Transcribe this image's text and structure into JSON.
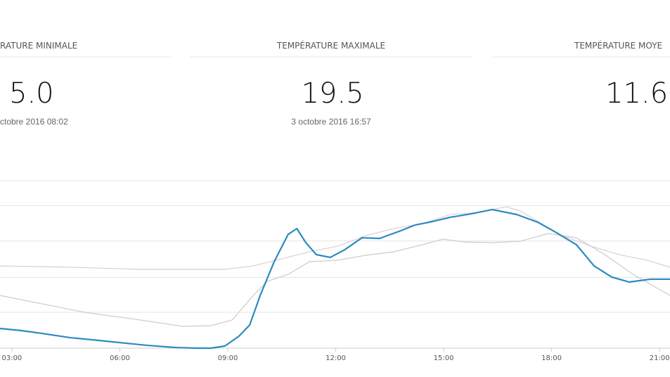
{
  "cards": [
    {
      "header": "RATURE MINIMALE",
      "value": "5.0",
      "date": "ctobre 2016 08:02"
    },
    {
      "header": "TEMPÉRATURE MAXIMALE",
      "value": "19.5",
      "date": "3 octobre 2016 16:57"
    },
    {
      "header": "TEMPÉRATURE MOYE",
      "value": "11.6"
    }
  ],
  "chart_data": {
    "type": "line",
    "xlim": [
      2.67,
      21.29
    ],
    "ylim": [
      5,
      22.5
    ],
    "xticks": [
      {
        "value": 3,
        "label": "03:00"
      },
      {
        "value": 6,
        "label": "06:00"
      },
      {
        "value": 9,
        "label": "09:00"
      },
      {
        "value": 12,
        "label": "12:00"
      },
      {
        "value": 15,
        "label": "15:00"
      },
      {
        "value": 18,
        "label": "18:00"
      },
      {
        "value": 21,
        "label": "21:00"
      }
    ],
    "ygrid": [
      8.75,
      12.4,
      16.2,
      19.9,
      22.5
    ],
    "series": [
      {
        "color": "#e0d2d2",
        "x": [
          2.67,
          4.62,
          6.58,
          8.92,
          9.71,
          10.49,
          11.27,
          12.05,
          12.83,
          13.61,
          14.4,
          15.18,
          15.96,
          16.74,
          17.13,
          17.72,
          18.3,
          19.09,
          19.87,
          20.65,
          21.29
        ],
        "values": [
          13.6,
          13.46,
          13.24,
          13.24,
          13.6,
          14.34,
          15.07,
          15.66,
          16.76,
          17.5,
          18.01,
          18.97,
          19.19,
          19.78,
          19.34,
          18.01,
          16.76,
          15.66,
          14.78,
          14.19,
          13.46
        ]
      },
      {
        "color": "#d4cccc",
        "x": [
          2.67,
          3.84,
          5.02,
          6.58,
          7.75,
          8.53,
          9.12,
          9.71,
          10.1,
          10.68,
          11.27,
          12.05,
          12.83,
          13.61,
          14.4,
          14.98,
          15.57,
          16.35,
          17.13,
          17.91,
          18.69,
          19.48,
          20.26,
          21.29
        ],
        "values": [
          10.51,
          9.63,
          8.75,
          7.94,
          7.28,
          7.35,
          7.94,
          10.51,
          11.99,
          12.72,
          14.04,
          14.19,
          14.71,
          15.07,
          15.81,
          16.4,
          16.1,
          16.03,
          16.18,
          16.99,
          16.54,
          14.78,
          12.72,
          10.51
        ]
      },
      {
        "color": "#2a8bc0",
        "x": [
          2.67,
          3.26,
          3.84,
          4.62,
          5.41,
          6.19,
          6.77,
          7.56,
          8.14,
          8.53,
          8.92,
          9.31,
          9.61,
          9.9,
          10.29,
          10.68,
          10.92,
          11.17,
          11.46,
          11.85,
          12.25,
          12.73,
          13.22,
          13.81,
          14.2,
          14.59,
          15.18,
          15.76,
          16.35,
          17.03,
          17.62,
          18.11,
          18.69,
          19.18,
          19.67,
          20.16,
          20.75,
          21.29
        ],
        "values": [
          7.06,
          6.84,
          6.54,
          6.1,
          5.81,
          5.51,
          5.29,
          5.07,
          5.0,
          5.0,
          5.22,
          6.25,
          7.43,
          10.51,
          14.04,
          16.91,
          17.5,
          16.03,
          14.78,
          14.49,
          15.29,
          16.54,
          16.47,
          17.28,
          17.87,
          18.16,
          18.68,
          19.04,
          19.49,
          18.97,
          18.16,
          17.13,
          15.81,
          13.6,
          12.43,
          11.91,
          12.21,
          12.21
        ]
      }
    ]
  }
}
